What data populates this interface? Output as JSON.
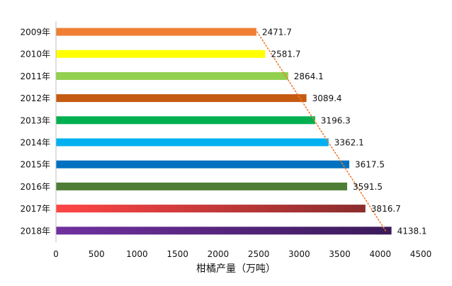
{
  "chart_data": {
    "type": "bar",
    "orientation": "horizontal",
    "categories": [
      "2009年",
      "2010年",
      "2011年",
      "2012年",
      "2013年",
      "2014年",
      "2015年",
      "2016年",
      "2017年",
      "2018年"
    ],
    "values": [
      2471.7,
      2581.7,
      2864.1,
      3089.4,
      3196.3,
      3362.1,
      3617.5,
      3591.5,
      3816.7,
      4138.1
    ],
    "data_labels": [
      "2471.7",
      "2581.7",
      "2864.1",
      "3089.4",
      "3196.3",
      "3362.1",
      "3617.5",
      "3591.5",
      "3816.7",
      "4138.1"
    ],
    "bar_colors": [
      "#f07f35",
      "#ffff00",
      "#92d050",
      "#c55a11",
      "#00b050",
      "#00b0f0",
      "#0070c0",
      "#4e7e35",
      "#ff4545",
      "#7030a0"
    ],
    "bar_colors_end": [
      "#f07f35",
      "#ffff00",
      "#92d050",
      "#c55a11",
      "#00b050",
      "#00b0f0",
      "#0070c0",
      "#4e7e35",
      "#8b2d2d",
      "#3b1a5a"
    ],
    "trendline": {
      "type": "linear",
      "color": "#ed7d31",
      "style": "dotted"
    },
    "xlabel": "柑橘产量（万吨）",
    "xlim": [
      0,
      4500
    ],
    "xticks": [
      0,
      500,
      1000,
      1500,
      2000,
      2500,
      3000,
      3500,
      4000,
      4500
    ],
    "grid": false,
    "legend": "none"
  }
}
